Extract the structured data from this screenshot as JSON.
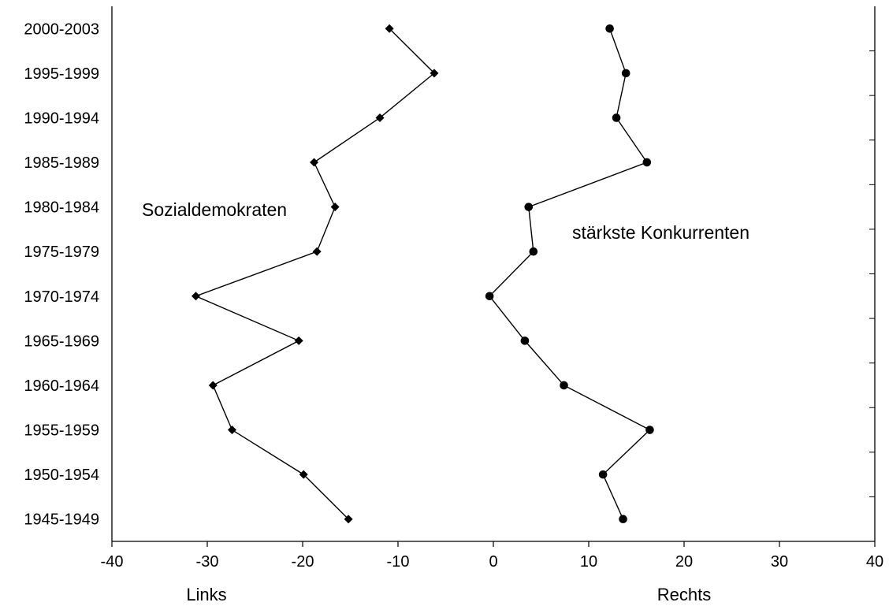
{
  "chart_data": {
    "type": "line",
    "orientation": "horizontal",
    "categories": [
      "1945-1949",
      "1950-1954",
      "1955-1959",
      "1960-1964",
      "1965-1969",
      "1970-1974",
      "1975-1979",
      "1980-1984",
      "1985-1989",
      "1990-1994",
      "1995-1999",
      "2000-2003"
    ],
    "series": [
      {
        "name": "Sozialdemokraten",
        "marker": "diamond",
        "values": [
          -15.2,
          -19.9,
          -27.4,
          -29.4,
          -20.4,
          -31.2,
          -18.5,
          -16.6,
          -18.8,
          -11.9,
          -6.2,
          -10.9
        ]
      },
      {
        "name": "stärkste Konkurrenten",
        "marker": "circle",
        "values": [
          13.6,
          11.5,
          16.4,
          7.4,
          3.3,
          -0.4,
          4.2,
          3.7,
          16.1,
          12.9,
          13.9,
          12.2
        ]
      }
    ],
    "xlim": [
      -40,
      40
    ],
    "xticks": [
      -40,
      -30,
      -20,
      -10,
      0,
      10,
      20,
      30,
      40
    ],
    "xlabel_left": "Links",
    "xlabel_right": "Rechts",
    "grid": false,
    "legend": "none"
  }
}
